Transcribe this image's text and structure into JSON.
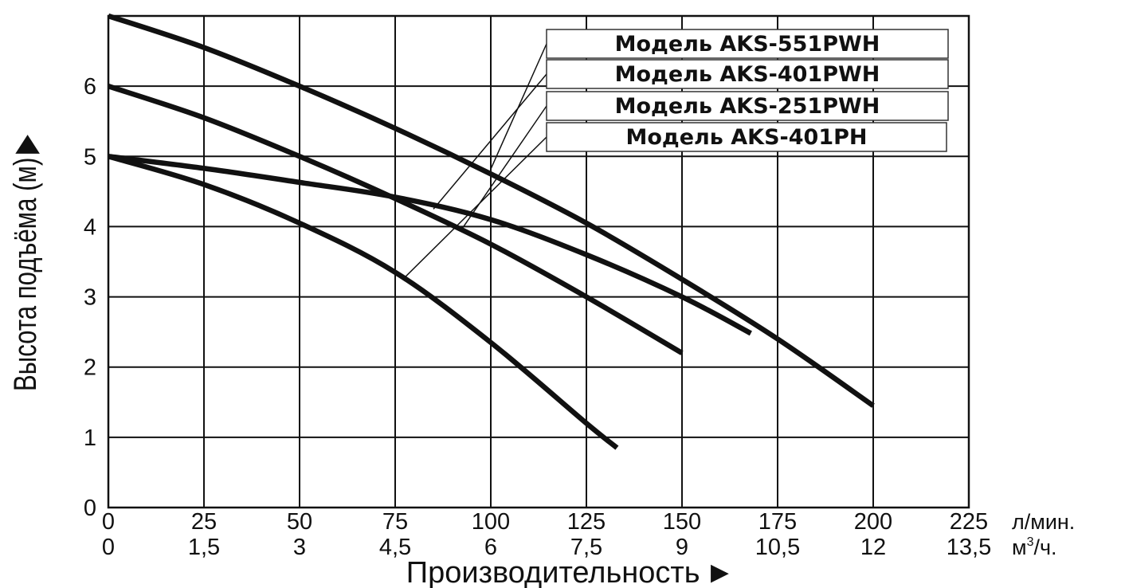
{
  "chart_data": {
    "type": "line",
    "ylabel": "Высота подъёма (м)",
    "ylabel_arrow": "▶",
    "xlabel": "Производительность",
    "xlabel_arrow": "►",
    "x_unit_primary": "л/мин.",
    "x_unit_secondary_base": "м",
    "x_unit_secondary_sup": "3",
    "x_unit_secondary_tail": "/ч.",
    "xlim": [
      0,
      225
    ],
    "ylim": [
      0,
      7
    ],
    "grid": true,
    "x_ticks_primary": [
      "0",
      "25",
      "50",
      "75",
      "100",
      "125",
      "150",
      "175",
      "200",
      "225"
    ],
    "x_ticks_secondary": [
      "0",
      "1,5",
      "3",
      "4,5",
      "6",
      "7,5",
      "9",
      "10,5",
      "12",
      "13,5"
    ],
    "y_ticks": [
      "0",
      "1",
      "2",
      "3",
      "4",
      "5",
      "6"
    ],
    "series": [
      {
        "name": "Модель AKS-551PWH",
        "x": [
          0,
          25,
          50,
          75,
          100,
          125,
          150,
          175,
          200
        ],
        "y": [
          7.0,
          6.55,
          6.0,
          5.4,
          4.75,
          4.05,
          3.25,
          2.4,
          1.45
        ]
      },
      {
        "name": "Модель AKS-401PWH",
        "x": [
          0,
          25,
          50,
          75,
          100,
          125,
          150,
          168
        ],
        "y": [
          5.0,
          4.83,
          4.63,
          4.42,
          4.1,
          3.6,
          3.0,
          2.48
        ]
      },
      {
        "name": "Модель AKS-251PWH",
        "x": [
          0,
          25,
          50,
          75,
          100,
          125,
          150
        ],
        "y": [
          6.0,
          5.55,
          5.0,
          4.4,
          3.75,
          3.0,
          2.2
        ]
      },
      {
        "name": "Модель AKS-401PH",
        "x": [
          0,
          25,
          50,
          75,
          100,
          125,
          133
        ],
        "y": [
          5.0,
          4.6,
          4.05,
          3.35,
          2.35,
          1.2,
          0.85
        ]
      }
    ]
  }
}
